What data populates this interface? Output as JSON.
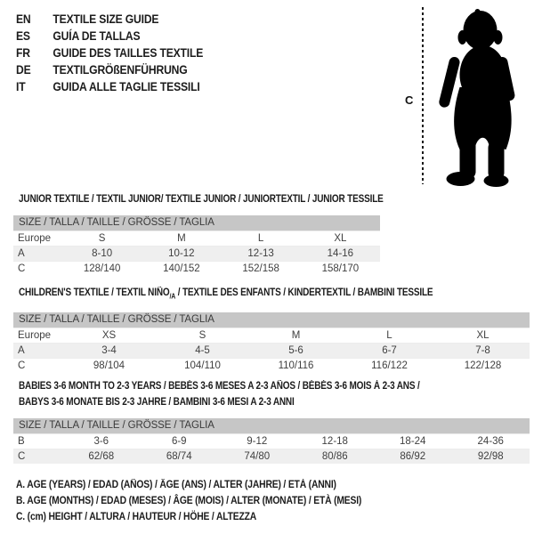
{
  "colors": {
    "background": "#ffffff",
    "table_header_bg": "#c6c6c6",
    "row_shaded_bg": "#efefef",
    "text": "#3f3f3f",
    "title_text": "#1b1b1b",
    "silhouette": "#000000"
  },
  "languages": [
    {
      "code": "EN",
      "title": "TEXTILE SIZE GUIDE"
    },
    {
      "code": "ES",
      "title": "GUÍA DE TALLAS"
    },
    {
      "code": "FR",
      "title": "GUIDE DES TAILLES TEXTILE"
    },
    {
      "code": "DE",
      "title": "TEXTILGRÖßENFÜHRUNG"
    },
    {
      "code": "IT",
      "title": "GUIDA ALLE TAGLIE TESSILI"
    }
  ],
  "figure": {
    "label": "C"
  },
  "sections": [
    {
      "title_parts": [
        {
          "text": "JUNIOR TEXTILE / TEXTIL JUNIOR/ TEXTILE JUNIOR / JUNIORTEXTIL / JUNIOR TESSILE"
        }
      ],
      "size_header": "SIZE / TALLA / TAILLE / GRÖSSE / TAGLIA",
      "rows": [
        {
          "label": "Europe",
          "values": [
            "S",
            "M",
            "L",
            "XL"
          ],
          "shaded": false
        },
        {
          "label": "A",
          "values": [
            "8-10",
            "10-12",
            "12-13",
            "14-16"
          ],
          "shaded": true
        },
        {
          "label": "C",
          "values": [
            "128/140",
            "140/152",
            "152/158",
            "158/170"
          ],
          "shaded": false
        }
      ]
    },
    {
      "title_parts": [
        {
          "text": "CHILDREN'S TEXTILE / TEXTIL NIÑO"
        },
        {
          "text": "/A",
          "sub": true
        },
        {
          "text": " / TEXTILE DES ENFANTS / KINDERTEXTIL / BAMBINI TESSILE"
        }
      ],
      "size_header": "SIZE / TALLA / TAILLE / GRÖSSE / TAGLIA",
      "rows": [
        {
          "label": "Europe",
          "values": [
            "XS",
            "S",
            "M",
            "L",
            "XL"
          ],
          "shaded": false
        },
        {
          "label": "A",
          "values": [
            "3-4",
            "4-5",
            "5-6",
            "6-7",
            "7-8"
          ],
          "shaded": true
        },
        {
          "label": "C",
          "values": [
            "98/104",
            "104/110",
            "110/116",
            "116/122",
            "122/128"
          ],
          "shaded": false
        }
      ]
    },
    {
      "title_parts": [
        {
          "text": "BABIES 3-6 MONTH TO 2-3 YEARS / BEBÉS 3-6 MESES A 2-3 AÑOS / BÉBÉS 3-6 MOIS À 2-3 ANS /"
        },
        {
          "br": true
        },
        {
          "text": "BABYS 3-6 MONATE BIS 2-3 JAHRE / BAMBINI 3-6 MESI A 2-3 ANNI"
        }
      ],
      "size_header": "SIZE / TALLA / TAILLE / GRÖSSE / TAGLIA",
      "rows": [
        {
          "label": "B",
          "values": [
            "3-6",
            "6-9",
            "9-12",
            "12-18",
            "18-24",
            "24-36"
          ],
          "shaded": false
        },
        {
          "label": "C",
          "values": [
            "62/68",
            "68/74",
            "74/80",
            "80/86",
            "86/92",
            "92/98"
          ],
          "shaded": true
        }
      ]
    }
  ],
  "notes": [
    "A. AGE (YEARS) / EDAD (AÑOS) / ÂGE (ANS) / ALTER (JAHRE) / ETÀ (ANNI)",
    "B. AGE (MONTHS) / EDAD (MESES) / ÂGE (MOIS) / ALTER (MONATE) / ETÀ (MESI)",
    "C. (cm) HEIGHT / ALTURA / HAUTEUR / HÖHE / ALTEZZA"
  ]
}
